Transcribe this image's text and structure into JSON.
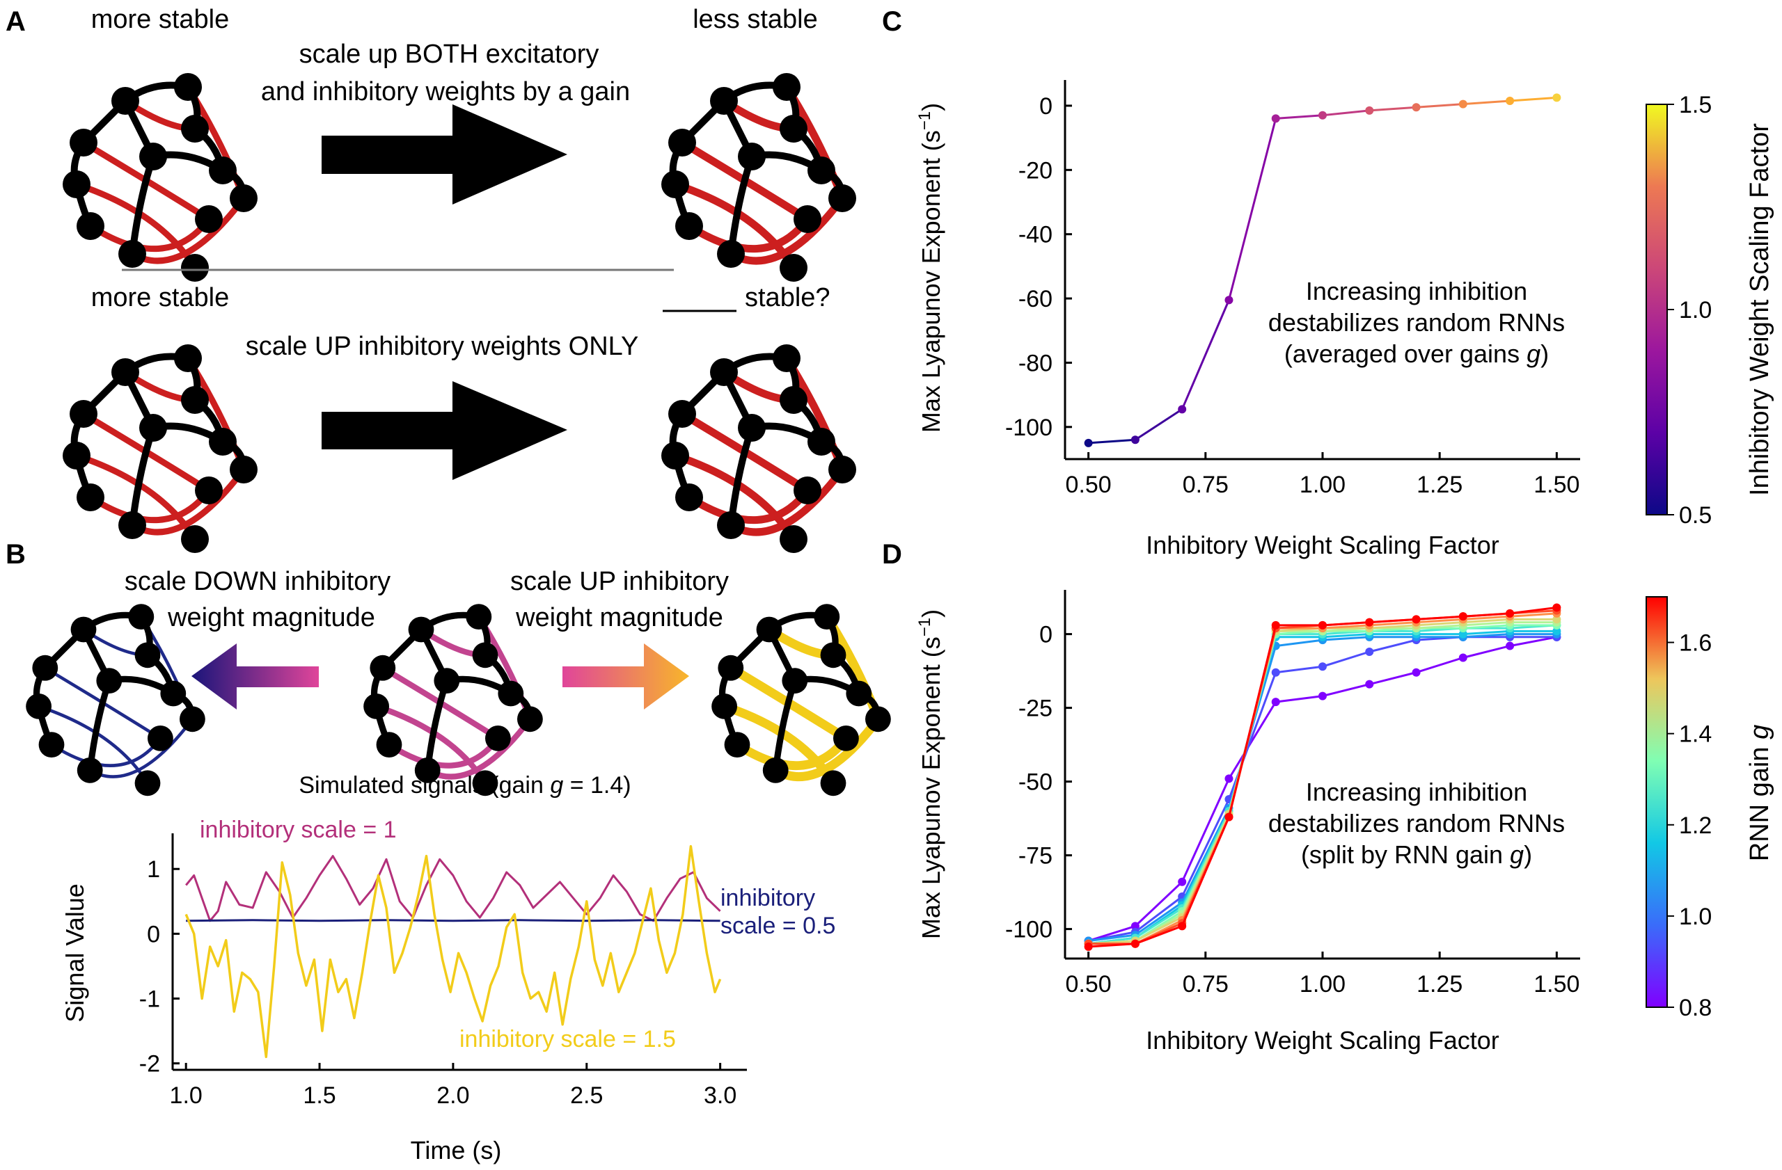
{
  "panelA": {
    "letter": "A",
    "top_left_label": "more stable",
    "top_right_label": "less stable",
    "top_arrow_text_1": "scale up BOTH excitatory",
    "top_arrow_text_2": "and inhibitory weights by a gain",
    "bottom_left_label": "more stable",
    "bottom_right_label": "stable?",
    "bottom_arrow_text": "scale UP inhibitory weights ONLY"
  },
  "panelB": {
    "letter": "B",
    "down_text_1": "scale DOWN inhibitory",
    "down_text_2": "weight magnitude",
    "up_text_1": "scale UP inhibitory",
    "up_text_2": "weight magnitude",
    "sim_title_prefix": "Simulated signals (gain ",
    "sim_title_g": "g",
    "sim_title_suffix": " = 1.4)",
    "ylabel": "Signal Value",
    "xlabel": "Time (s)",
    "label_scale1": "inhibitory scale = 1",
    "label_scale05_1": "inhibitory",
    "label_scale05_2": "scale = 0.5",
    "label_scale15": "inhibitory scale = 1.5"
  },
  "panelC": {
    "letter": "C",
    "annot_1": "Increasing inhibition",
    "annot_2": "destabilizes random RNNs",
    "annot_3_prefix": "(averaged over gains ",
    "annot_3_g": "g",
    "annot_3_suffix": ")",
    "colorbar_label": "Inhibitory Weight Scaling Factor"
  },
  "panelD": {
    "letter": "D",
    "annot_1": "Increasing inhibition",
    "annot_2": "destabilizes random RNNs",
    "annot_3_prefix": "(split by RNN gain ",
    "annot_3_g": "g",
    "annot_3_suffix": ")",
    "colorbar_label_prefix": "RNN gain ",
    "colorbar_label_g": "g"
  },
  "colors": {
    "network_node": "#000000",
    "network_red": "#cc1f1f",
    "network_blue": "#1f2a8a",
    "network_magenta": "#c2448f",
    "network_yellow": "#f2cc1a",
    "arrow_black": "#000000",
    "trace_scale1": "#b3307a",
    "trace_scale05": "#1a1f7a",
    "trace_scale15": "#f2cc1a"
  },
  "chart_data": [
    {
      "id": "B",
      "type": "line",
      "title": "Simulated signals (gain g = 1.4)",
      "xlabel": "Time (s)",
      "ylabel": "Signal Value",
      "xlim": [
        0.95,
        3.1
      ],
      "ylim": [
        -2.1,
        1.55
      ],
      "xticks": [
        1.0,
        1.5,
        2.0,
        2.5,
        3.0
      ],
      "xtick_labels": [
        "1.0",
        "1.5",
        "2.0",
        "2.5",
        "3.0"
      ],
      "yticks": [
        -2,
        -1,
        0,
        1
      ],
      "ytick_labels": [
        "-2",
        "-1",
        "0",
        "1"
      ],
      "series": [
        {
          "name": "inhibitory scale = 1",
          "color": "#b3307a",
          "x": [
            1.0,
            1.03,
            1.06,
            1.09,
            1.12,
            1.15,
            1.2,
            1.25,
            1.3,
            1.35,
            1.4,
            1.45,
            1.5,
            1.55,
            1.6,
            1.65,
            1.7,
            1.75,
            1.8,
            1.85,
            1.9,
            1.95,
            2.0,
            2.05,
            2.1,
            2.15,
            2.2,
            2.25,
            2.3,
            2.35,
            2.4,
            2.45,
            2.5,
            2.55,
            2.6,
            2.65,
            2.7,
            2.75,
            2.8,
            2.85,
            2.9,
            2.95,
            3.0
          ],
          "y": [
            0.75,
            0.9,
            0.55,
            0.2,
            0.35,
            0.8,
            0.45,
            0.4,
            0.95,
            0.65,
            0.25,
            0.55,
            0.9,
            1.2,
            0.85,
            0.45,
            0.7,
            1.15,
            0.5,
            0.25,
            0.75,
            1.15,
            0.9,
            0.5,
            0.25,
            0.55,
            0.95,
            0.75,
            0.4,
            0.6,
            0.8,
            0.55,
            0.3,
            0.55,
            0.9,
            0.65,
            0.3,
            0.2,
            0.55,
            0.85,
            0.95,
            0.55,
            0.35
          ]
        },
        {
          "name": "inhibitory scale = 0.5",
          "color": "#1a1f7a",
          "x": [
            1.0,
            1.25,
            1.5,
            1.75,
            2.0,
            2.25,
            2.5,
            2.75,
            3.0
          ],
          "y": [
            0.2,
            0.21,
            0.2,
            0.21,
            0.2,
            0.21,
            0.2,
            0.21,
            0.2
          ]
        },
        {
          "name": "inhibitory scale = 1.5",
          "color": "#f2cc1a",
          "x": [
            1.0,
            1.03,
            1.06,
            1.09,
            1.12,
            1.15,
            1.18,
            1.21,
            1.24,
            1.27,
            1.3,
            1.33,
            1.36,
            1.39,
            1.42,
            1.45,
            1.48,
            1.51,
            1.54,
            1.57,
            1.6,
            1.63,
            1.66,
            1.69,
            1.72,
            1.75,
            1.78,
            1.81,
            1.84,
            1.87,
            1.9,
            1.93,
            1.96,
            1.99,
            2.02,
            2.05,
            2.08,
            2.11,
            2.14,
            2.17,
            2.2,
            2.23,
            2.26,
            2.29,
            2.32,
            2.35,
            2.38,
            2.41,
            2.44,
            2.47,
            2.5,
            2.53,
            2.56,
            2.59,
            2.62,
            2.65,
            2.68,
            2.71,
            2.74,
            2.77,
            2.8,
            2.83,
            2.86,
            2.89,
            2.92,
            2.95,
            2.98,
            3.0
          ],
          "y": [
            0.3,
            0.0,
            -1.0,
            -0.2,
            -0.5,
            -0.1,
            -1.2,
            -0.6,
            -0.7,
            -0.9,
            -1.9,
            -0.5,
            1.1,
            0.6,
            -0.3,
            -0.8,
            -0.4,
            -1.5,
            -0.4,
            -0.9,
            -0.7,
            -1.3,
            -0.6,
            0.2,
            0.9,
            0.4,
            -0.6,
            -0.3,
            0.1,
            0.6,
            1.2,
            0.3,
            -0.4,
            -0.9,
            -0.3,
            -0.6,
            -1.0,
            -1.35,
            -0.8,
            -0.5,
            0.1,
            0.3,
            -0.6,
            -1.0,
            -0.9,
            -1.2,
            -0.6,
            -1.4,
            -0.7,
            -0.2,
            0.5,
            -0.4,
            -0.8,
            -0.3,
            -0.9,
            -0.6,
            -0.3,
            0.2,
            0.7,
            -0.1,
            -0.6,
            -0.3,
            0.3,
            1.35,
            0.5,
            -0.3,
            -0.9,
            -0.7
          ]
        }
      ]
    },
    {
      "id": "C",
      "type": "line",
      "xlabel": "Inhibitory Weight Scaling Factor",
      "ylabel": "Max Lyapunov Exponent",
      "ylabel_unit_prefix": "(s",
      "ylabel_unit_sup": "−1",
      "ylabel_unit_suffix": ")",
      "xlim": [
        0.45,
        1.55
      ],
      "ylim": [
        -110,
        8
      ],
      "xticks": [
        0.5,
        0.75,
        1.0,
        1.25,
        1.5
      ],
      "xtick_labels": [
        "0.50",
        "0.75",
        "1.00",
        "1.25",
        "1.50"
      ],
      "yticks": [
        0,
        -20,
        -40,
        -60,
        -80,
        -100
      ],
      "ytick_labels": [
        "0",
        "-20",
        "-40",
        "-60",
        "-80",
        "-100"
      ],
      "colorbar": {
        "label": "Inhibitory Weight Scaling Factor",
        "ticks": [
          0.5,
          1.0,
          1.5
        ],
        "tick_labels": [
          "0.5",
          "1.0",
          "1.5"
        ],
        "colormap": "plasma"
      },
      "x": [
        0.5,
        0.6,
        0.7,
        0.8,
        0.9,
        1.0,
        1.1,
        1.2,
        1.3,
        1.4,
        1.5
      ],
      "y": [
        -105,
        -104,
        -94.5,
        -60.5,
        -4,
        -3,
        -1.5,
        -0.5,
        0.5,
        1.5,
        2.5
      ],
      "point_colors": [
        "#0d0887",
        "#3e049c",
        "#6300a7",
        "#8606a6",
        "#a62098",
        "#c03a83",
        "#d5546e",
        "#e76f5a",
        "#f58b47",
        "#fdad32",
        "#f7d13d"
      ]
    },
    {
      "id": "D",
      "type": "line",
      "xlabel": "Inhibitory Weight Scaling Factor",
      "ylabel": "Max Lyapunov Exponent",
      "ylabel_unit_prefix": "(s",
      "ylabel_unit_sup": "−1",
      "ylabel_unit_suffix": ")",
      "xlim": [
        0.45,
        1.55
      ],
      "ylim": [
        -110,
        15
      ],
      "xticks": [
        0.5,
        0.75,
        1.0,
        1.25,
        1.5
      ],
      "xtick_labels": [
        "0.50",
        "0.75",
        "1.00",
        "1.25",
        "1.50"
      ],
      "yticks": [
        0,
        -25,
        -50,
        -75,
        -100
      ],
      "ytick_labels": [
        "0",
        "-25",
        "-50",
        "-75",
        "-100"
      ],
      "colorbar": {
        "label": "RNN gain g",
        "ticks": [
          0.8,
          1.0,
          1.2,
          1.4,
          1.6
        ],
        "tick_labels": [
          "0.8",
          "1.0",
          "1.2",
          "1.4",
          "1.6"
        ],
        "range": [
          0.8,
          1.7
        ],
        "colormap": "rainbow"
      },
      "x": [
        0.5,
        0.6,
        0.7,
        0.8,
        0.9,
        1.0,
        1.1,
        1.2,
        1.3,
        1.4,
        1.5
      ],
      "series": [
        {
          "name": "g=0.8",
          "color": "#8000ff",
          "values": [
            -104,
            -99,
            -84,
            -49,
            -23,
            -21,
            -17,
            -13,
            -8,
            -4,
            -1
          ]
        },
        {
          "name": "g=0.9",
          "color": "#4e4dfc",
          "values": [
            -104,
            -101,
            -89,
            -56,
            -13,
            -11,
            -6,
            -2,
            -1,
            -1,
            -1
          ]
        },
        {
          "name": "g=1.0",
          "color": "#1e96f2",
          "values": [
            -104,
            -102,
            -91,
            -59,
            -4,
            -2,
            -1,
            -1,
            -1,
            0,
            0
          ]
        },
        {
          "name": "g=1.1",
          "color": "#15c5e6",
          "values": [
            -105,
            -103,
            -92,
            -60,
            -1,
            -1,
            0,
            0,
            0,
            1,
            1
          ]
        },
        {
          "name": "g=1.2",
          "color": "#49e7d1",
          "values": [
            -105,
            -103,
            -93,
            -60,
            0,
            0,
            1,
            1,
            2,
            2,
            3
          ]
        },
        {
          "name": "g=1.3",
          "color": "#80feb3",
          "values": [
            -105,
            -104,
            -94,
            -61,
            0,
            1,
            1,
            2,
            2,
            3,
            3
          ]
        },
        {
          "name": "g=1.4",
          "color": "#b2f396",
          "values": [
            -105,
            -104,
            -95,
            -61,
            1,
            1,
            2,
            2,
            3,
            4,
            4
          ]
        },
        {
          "name": "g=1.5",
          "color": "#dcd675",
          "values": [
            -105,
            -104,
            -96,
            -61,
            1,
            2,
            2,
            3,
            4,
            5,
            5
          ]
        },
        {
          "name": "g=1.6",
          "color": "#ff8f48",
          "values": [
            -105,
            -105,
            -97,
            -62,
            2,
            2,
            3,
            4,
            5,
            6,
            7
          ]
        },
        {
          "name": "g=1.65",
          "color": "#ff4d26",
          "values": [
            -105,
            -105,
            -98,
            -62,
            2,
            3,
            4,
            5,
            6,
            7,
            8
          ]
        },
        {
          "name": "g=1.7",
          "color": "#ff0000",
          "values": [
            -106,
            -105,
            -99,
            -62,
            3,
            3,
            4,
            5,
            6,
            7,
            9
          ]
        }
      ]
    }
  ]
}
